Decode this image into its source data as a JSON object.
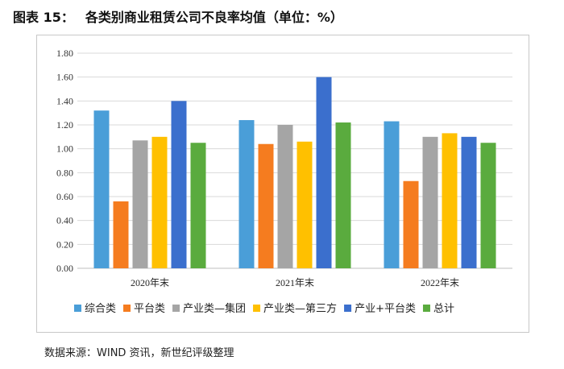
{
  "caption": {
    "label": "图表 15：",
    "title": "各类别商业租赁公司不良率均值（单位：%）"
  },
  "source": "数据来源：WIND 资讯，新世纪评级整理",
  "chart_data": {
    "type": "bar",
    "title": "各类别商业租赁公司不良率均值（单位：%）",
    "categories": [
      "2020年末",
      "2021年末",
      "2022年末"
    ],
    "ylim": [
      0,
      1.8
    ],
    "yticks": [
      "0.00",
      "0.20",
      "0.40",
      "0.60",
      "0.80",
      "1.00",
      "1.20",
      "1.40",
      "1.60",
      "1.80"
    ],
    "grid": true,
    "legend_position": "bottom",
    "series": [
      {
        "name": "综合类",
        "color": "#4a9ed8",
        "values": [
          1.32,
          1.24,
          1.23
        ]
      },
      {
        "name": "平台类",
        "color": "#f57c1f",
        "values": [
          0.56,
          1.04,
          0.73
        ]
      },
      {
        "name": "产业类—集团",
        "color": "#a5a5a5",
        "values": [
          1.07,
          1.2,
          1.1
        ]
      },
      {
        "name": "产业类—第三方",
        "color": "#ffc000",
        "values": [
          1.1,
          1.06,
          1.13
        ]
      },
      {
        "name": "产业+平台类",
        "color": "#3b6fcd",
        "values": [
          1.4,
          1.6,
          1.1
        ]
      },
      {
        "name": "总计",
        "color": "#5aab3e",
        "values": [
          1.05,
          1.22,
          1.05
        ]
      }
    ]
  }
}
